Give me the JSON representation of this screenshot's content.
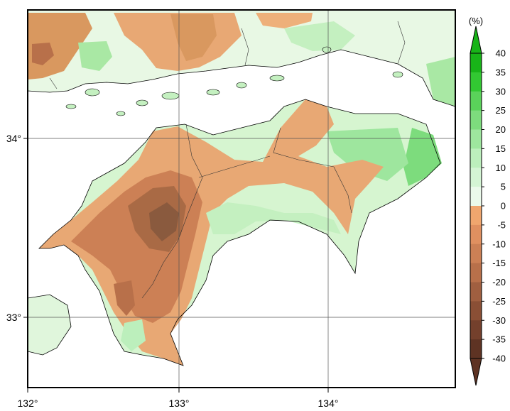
{
  "map": {
    "x_axis": {
      "ticks": [
        "132°",
        "133°",
        "134°"
      ]
    },
    "y_axis": {
      "ticks": [
        "34°",
        "33°"
      ]
    },
    "grid_lines": true
  },
  "colorbar": {
    "unit": "(%)",
    "labels": [
      "40",
      "35",
      "30",
      "25",
      "20",
      "15",
      "10",
      "5",
      "0",
      "-5",
      "-10",
      "-15",
      "-20",
      "-25",
      "-30",
      "-35",
      "-40"
    ],
    "colors": [
      "#18b418",
      "#32c832",
      "#5ad25a",
      "#7ddc7d",
      "#9ee69e",
      "#bcefbc",
      "#d4f5d4",
      "#ebfaeb",
      "#f0a66e",
      "#e09060",
      "#cc8055",
      "#b8704a",
      "#a05f40",
      "#8a4f35",
      "#74402c",
      "#5e3323"
    ]
  },
  "colors": {
    "land_white": "#ffffff",
    "coast": "#000000",
    "grid": "#555555"
  }
}
